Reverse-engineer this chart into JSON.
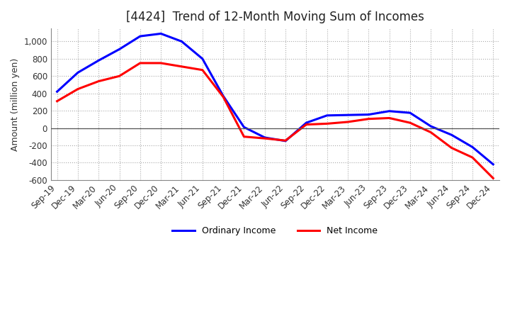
{
  "title": "[4424]  Trend of 12-Month Moving Sum of Incomes",
  "ylabel": "Amount (million yen)",
  "ylim": [
    -600,
    1150
  ],
  "yticks": [
    -600,
    -400,
    -200,
    0,
    200,
    400,
    600,
    800,
    1000
  ],
  "legend": [
    "Ordinary Income",
    "Net Income"
  ],
  "line_colors": [
    "blue",
    "red"
  ],
  "x_labels": [
    "Sep-19",
    "Dec-19",
    "Mar-20",
    "Jun-20",
    "Sep-20",
    "Dec-20",
    "Mar-21",
    "Jun-21",
    "Sep-21",
    "Dec-21",
    "Mar-22",
    "Jun-22",
    "Sep-22",
    "Dec-22",
    "Mar-23",
    "Jun-23",
    "Sep-23",
    "Dec-23",
    "Mar-24",
    "Jun-24",
    "Sep-24",
    "Dec-24"
  ],
  "ordinary_income": [
    420,
    640,
    780,
    910,
    1060,
    1090,
    1000,
    800,
    370,
    10,
    -110,
    -150,
    60,
    145,
    150,
    155,
    195,
    175,
    20,
    -80,
    -220,
    -420
  ],
  "net_income": [
    310,
    450,
    540,
    600,
    750,
    750,
    710,
    670,
    360,
    -100,
    -120,
    -145,
    40,
    50,
    70,
    105,
    115,
    60,
    -50,
    -230,
    -340,
    -580
  ],
  "grid_color": "#aaaaaa",
  "bg_color": "#ffffff",
  "line_width": 2.2,
  "title_fontsize": 12,
  "tick_fontsize": 8.5,
  "ylabel_fontsize": 9
}
